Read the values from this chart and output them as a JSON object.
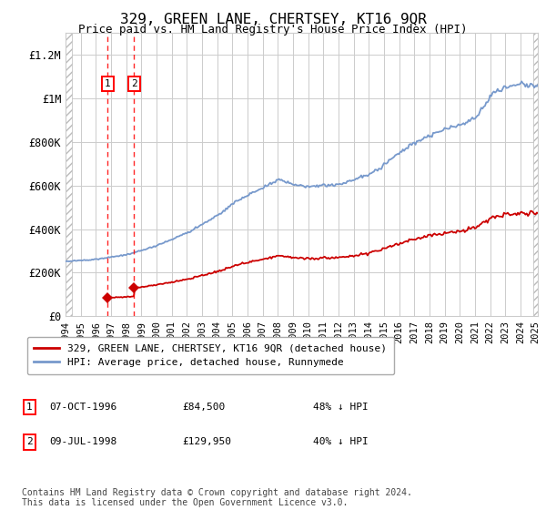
{
  "title": "329, GREEN LANE, CHERTSEY, KT16 9QR",
  "subtitle": "Price paid vs. HM Land Registry's House Price Index (HPI)",
  "transactions": [
    {
      "label": "1",
      "date": "07-OCT-1996",
      "price": 84500,
      "year": 1996.77,
      "pct": "48% ↓ HPI"
    },
    {
      "label": "2",
      "date": "09-JUL-1998",
      "price": 129950,
      "year": 1998.53,
      "pct": "40% ↓ HPI"
    }
  ],
  "legend_line1": "329, GREEN LANE, CHERTSEY, KT16 9QR (detached house)",
  "legend_line2": "HPI: Average price, detached house, Runnymede",
  "footer": "Contains HM Land Registry data © Crown copyright and database right 2024.\nThis data is licensed under the Open Government Licence v3.0.",
  "price_color": "#cc0000",
  "hpi_color": "#7799cc",
  "ylim": [
    0,
    1300000
  ],
  "yticks": [
    0,
    200000,
    400000,
    600000,
    800000,
    1000000,
    1200000
  ],
  "ytick_labels": [
    "£0",
    "£200K",
    "£400K",
    "£600K",
    "£800K",
    "£1M",
    "£1.2M"
  ],
  "xstart": 1994,
  "xend": 2025
}
